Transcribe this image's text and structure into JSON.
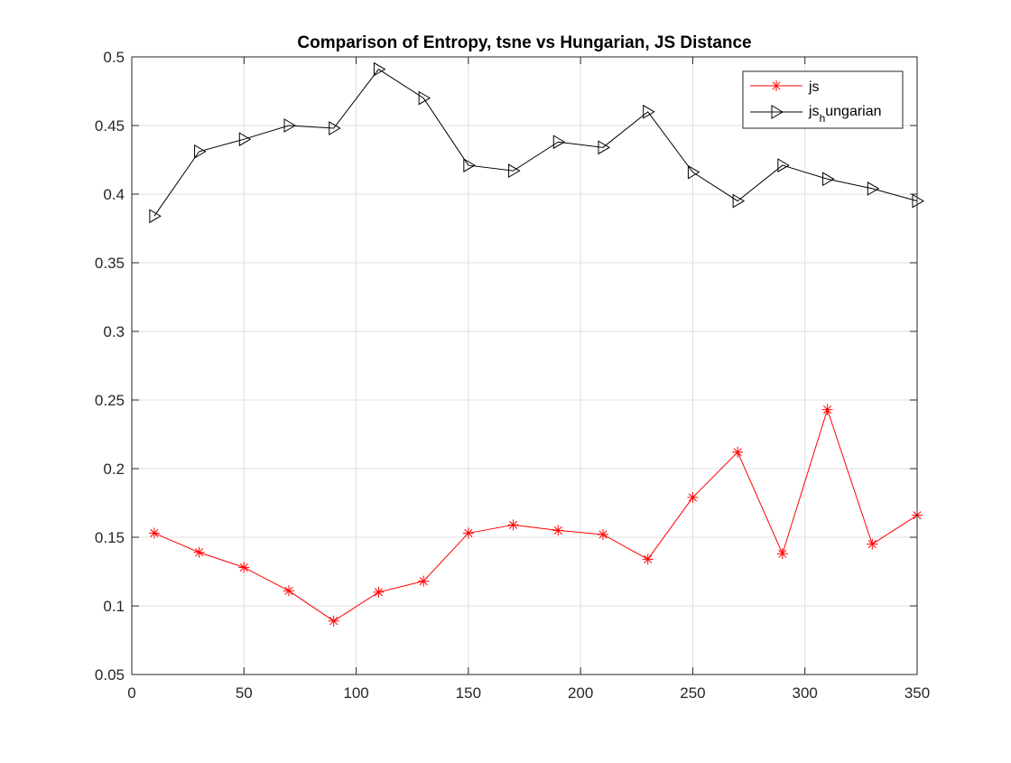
{
  "chart_data": {
    "type": "line",
    "title": "Comparison of Entropy, tsne vs Hungarian, JS Distance",
    "xlabel": "",
    "ylabel": "",
    "xlim": [
      0,
      350
    ],
    "ylim": [
      0.05,
      0.5
    ],
    "x_ticks": [
      0,
      50,
      100,
      150,
      200,
      250,
      300,
      350
    ],
    "x_tick_labels": [
      "0",
      "50",
      "100",
      "150",
      "200",
      "250",
      "300",
      "350"
    ],
    "y_ticks": [
      0.05,
      0.1,
      0.15,
      0.2,
      0.25,
      0.3,
      0.35,
      0.4,
      0.45,
      0.5
    ],
    "y_tick_labels": [
      "0.05",
      "0.1",
      "0.15",
      "0.2",
      "0.25",
      "0.3",
      "0.35",
      "0.4",
      "0.45",
      "0.5"
    ],
    "grid": true,
    "legend_position": "top-right",
    "x": [
      10,
      30,
      50,
      70,
      90,
      110,
      130,
      150,
      170,
      190,
      210,
      230,
      250,
      270,
      290,
      310,
      330,
      350
    ],
    "series": [
      {
        "name": "js",
        "color": "#ff0000",
        "marker": "asterisk",
        "values": [
          0.153,
          0.139,
          0.128,
          0.111,
          0.089,
          0.11,
          0.118,
          0.153,
          0.159,
          0.155,
          0.152,
          0.134,
          0.179,
          0.212,
          0.138,
          0.243,
          0.145,
          0.166
        ]
      },
      {
        "name": "js_hungarian",
        "legend_base": "js",
        "legend_sub": "h",
        "legend_rest": "ungarian",
        "color": "#000000",
        "marker": "triangle-right",
        "values": [
          0.384,
          0.431,
          0.44,
          0.45,
          0.448,
          0.491,
          0.47,
          0.421,
          0.417,
          0.438,
          0.434,
          0.46,
          0.416,
          0.395,
          0.421,
          0.411,
          0.404,
          0.395
        ]
      }
    ]
  }
}
